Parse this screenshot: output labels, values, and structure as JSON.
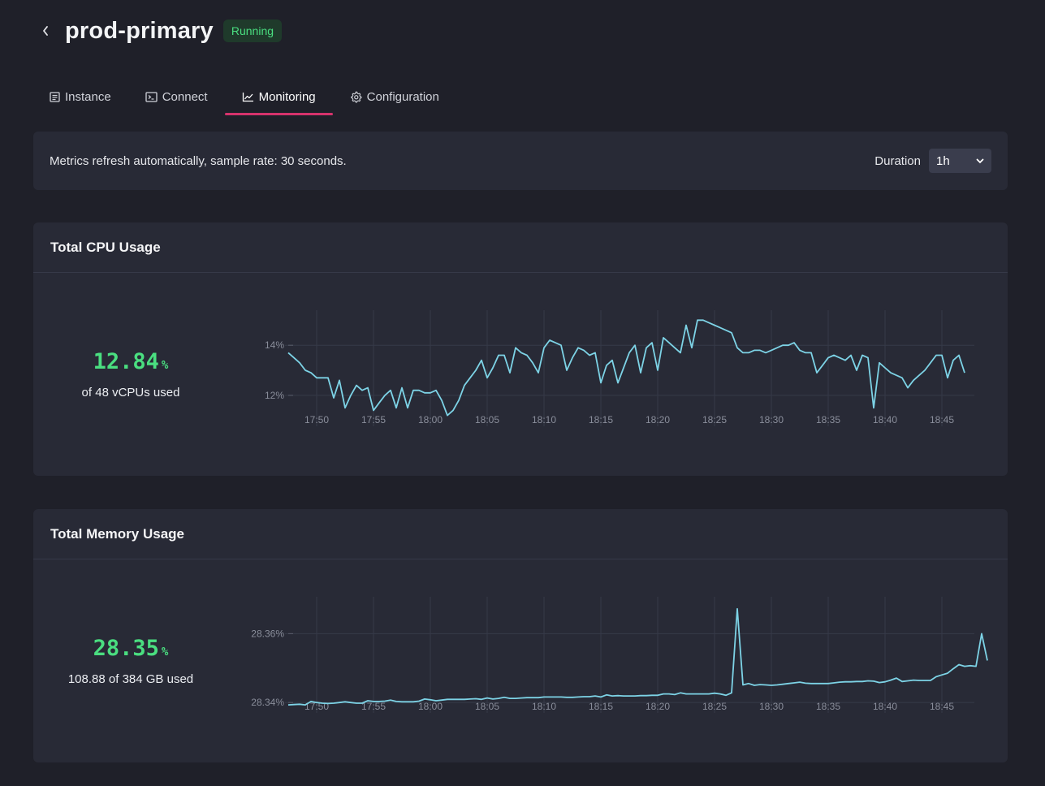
{
  "header": {
    "title": "prod-primary",
    "status": "Running"
  },
  "tabs": [
    {
      "label": "Instance",
      "icon": "instance-icon"
    },
    {
      "label": "Connect",
      "icon": "terminal-icon"
    },
    {
      "label": "Monitoring",
      "icon": "chart-line-icon",
      "active": true
    },
    {
      "label": "Configuration",
      "icon": "gear-icon"
    }
  ],
  "info": {
    "text": "Metrics refresh automatically, sample rate: 30 seconds.",
    "duration_label": "Duration",
    "duration_value": "1h"
  },
  "colors": {
    "accent": "#d6336c",
    "status": "#4ade80",
    "line": "#7dd3e6"
  },
  "cpu": {
    "title": "Total CPU Usage",
    "value": "12.84",
    "unit": "%",
    "sub": "of 48 vCPUs used"
  },
  "memory": {
    "title": "Total Memory Usage",
    "value": "28.35",
    "unit": "%",
    "sub": "108.88 of 384 GB used"
  },
  "chart_data": [
    {
      "type": "line",
      "title": "Total CPU Usage",
      "x_ticks": [
        "17:50",
        "17:55",
        "18:00",
        "18:05",
        "18:10",
        "18:15",
        "18:20",
        "18:25",
        "18:30",
        "18:35",
        "18:40",
        "18:45"
      ],
      "y_ticks": [
        "14%",
        "12%"
      ],
      "y_tick_values": [
        14,
        12
      ],
      "ylim": [
        10.7,
        15.4
      ],
      "x_start_min": -2.5,
      "x_step_min": 0.5,
      "series": [
        {
          "name": "CPU",
          "values": [
            13.7,
            13.5,
            13.3,
            13.0,
            12.9,
            12.7,
            12.7,
            12.7,
            11.9,
            12.6,
            11.5,
            12.0,
            12.4,
            12.2,
            12.3,
            11.4,
            11.7,
            12.0,
            12.2,
            11.5,
            12.3,
            11.5,
            12.2,
            12.2,
            12.1,
            12.1,
            12.2,
            11.8,
            11.2,
            11.4,
            11.8,
            12.4,
            12.7,
            13.0,
            13.4,
            12.7,
            13.1,
            13.6,
            13.6,
            12.9,
            13.9,
            13.7,
            13.6,
            13.3,
            12.9,
            13.9,
            14.2,
            14.1,
            14.0,
            13.0,
            13.5,
            13.9,
            13.8,
            13.6,
            13.7,
            12.5,
            13.2,
            13.4,
            12.5,
            13.1,
            13.7,
            14.0,
            12.9,
            13.9,
            14.1,
            13.0,
            14.3,
            14.1,
            13.9,
            13.7,
            14.8,
            13.9,
            15.0,
            15.0,
            14.9,
            14.8,
            14.7,
            14.6,
            14.5,
            13.9,
            13.7,
            13.7,
            13.8,
            13.8,
            13.7,
            13.8,
            13.9,
            14.0,
            14.0,
            14.1,
            13.8,
            13.7,
            13.7,
            12.9,
            13.2,
            13.5,
            13.6,
            13.5,
            13.4,
            13.6,
            13.0,
            13.6,
            13.5,
            11.5,
            13.3,
            13.1,
            12.9,
            12.8,
            12.7,
            12.3,
            12.6,
            12.8,
            13.0,
            13.3,
            13.6,
            13.6,
            12.7,
            13.4,
            13.6,
            12.9
          ]
        }
      ]
    },
    {
      "type": "line",
      "title": "Total Memory Usage",
      "x_ticks": [
        "17:50",
        "17:55",
        "18:00",
        "18:05",
        "18:10",
        "18:15",
        "18:20",
        "18:25",
        "18:30",
        "18:35",
        "18:40",
        "18:45"
      ],
      "y_ticks": [
        "28.36%",
        "28.34%"
      ],
      "y_tick_values": [
        28.36,
        28.34
      ],
      "ylim": [
        28.3365,
        28.3707
      ],
      "x_start_min": -2.5,
      "x_step_min": 0.5,
      "series": [
        {
          "name": "Memory",
          "values": [
            28.3393,
            28.3394,
            28.3395,
            28.3393,
            28.3403,
            28.34,
            28.3398,
            28.3397,
            28.3398,
            28.34,
            28.3402,
            28.34,
            28.3398,
            28.3398,
            28.3405,
            28.3403,
            28.3403,
            28.3404,
            28.3407,
            28.3403,
            28.3402,
            28.3402,
            28.3402,
            28.3404,
            28.341,
            28.3408,
            28.3405,
            28.3407,
            28.3409,
            28.3409,
            28.3409,
            28.3409,
            28.341,
            28.3411,
            28.3409,
            28.3413,
            28.341,
            28.3412,
            28.3415,
            28.3412,
            28.3412,
            28.3413,
            28.3414,
            28.3414,
            28.3414,
            28.3416,
            28.3416,
            28.3416,
            28.3416,
            28.3415,
            28.3415,
            28.3416,
            28.3417,
            28.3417,
            28.3419,
            28.3416,
            28.3422,
            28.3419,
            28.342,
            28.3419,
            28.3419,
            28.3419,
            28.342,
            28.342,
            28.3421,
            28.3421,
            28.3425,
            28.3425,
            28.3423,
            28.3428,
            28.3425,
            28.3425,
            28.3425,
            28.3425,
            28.3425,
            28.3427,
            28.3425,
            28.3421,
            28.3428,
            28.3672,
            28.3451,
            28.3455,
            28.345,
            28.3452,
            28.3451,
            28.345,
            28.3451,
            28.3453,
            28.3455,
            28.3457,
            28.3459,
            28.3456,
            28.3455,
            28.3455,
            28.3455,
            28.3455,
            28.3457,
            28.3459,
            28.346,
            28.346,
            28.3461,
            28.3461,
            28.3463,
            28.3462,
            28.3458,
            28.346,
            28.3465,
            28.3471,
            28.3461,
            28.3463,
            28.3465,
            28.3464,
            28.3464,
            28.3464,
            28.3475,
            28.348,
            28.3485,
            28.3498,
            28.351,
            28.3505,
            28.3507,
            28.3505,
            28.36,
            28.3522
          ]
        }
      ]
    }
  ]
}
